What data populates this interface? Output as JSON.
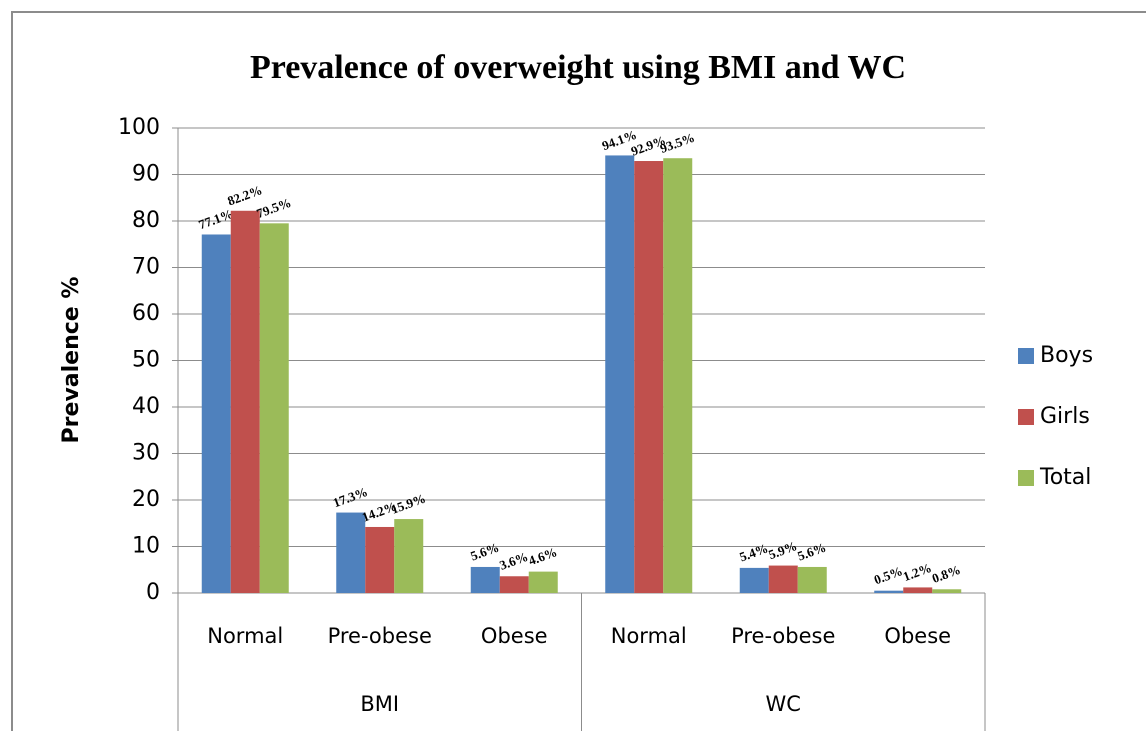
{
  "chart_data": {
    "type": "bar",
    "title": "Prevalence of overweight using BMI and WC",
    "y_label": "Prevalence %",
    "categories": [
      "Normal",
      "Pre-obese",
      "Obese",
      "Normal",
      "Pre-obese",
      "Obese"
    ],
    "groups": [
      "BMI",
      "WC"
    ],
    "series": [
      {
        "name": "Boys",
        "color": "#4f81bd",
        "values": [
          77.1,
          17.3,
          5.6,
          94.1,
          5.4,
          0.5
        ],
        "value_labels": [
          "77.1%",
          "17.3%",
          "5.6%",
          "94.1%",
          "5.4%",
          "0.5%"
        ]
      },
      {
        "name": "Girls",
        "color": "#c0504d",
        "values": [
          82.2,
          14.2,
          3.6,
          92.9,
          5.9,
          1.2
        ],
        "value_labels": [
          "82.2%",
          "14.2%",
          "3.6%",
          "92.9%",
          "5.9%",
          "1.2%"
        ]
      },
      {
        "name": "Total",
        "color": "#9bbb59",
        "values": [
          79.5,
          15.9,
          4.6,
          93.5,
          5.6,
          0.8
        ],
        "value_labels": [
          "79.5%",
          "15.9%",
          "4.6%",
          "93.5%",
          "5.6%",
          "0.8%"
        ]
      }
    ],
    "ylim": [
      0,
      100
    ],
    "yticks": [
      0,
      10,
      20,
      30,
      40,
      50,
      60,
      70,
      80,
      90,
      100
    ],
    "grid": true,
    "legend": "right"
  }
}
